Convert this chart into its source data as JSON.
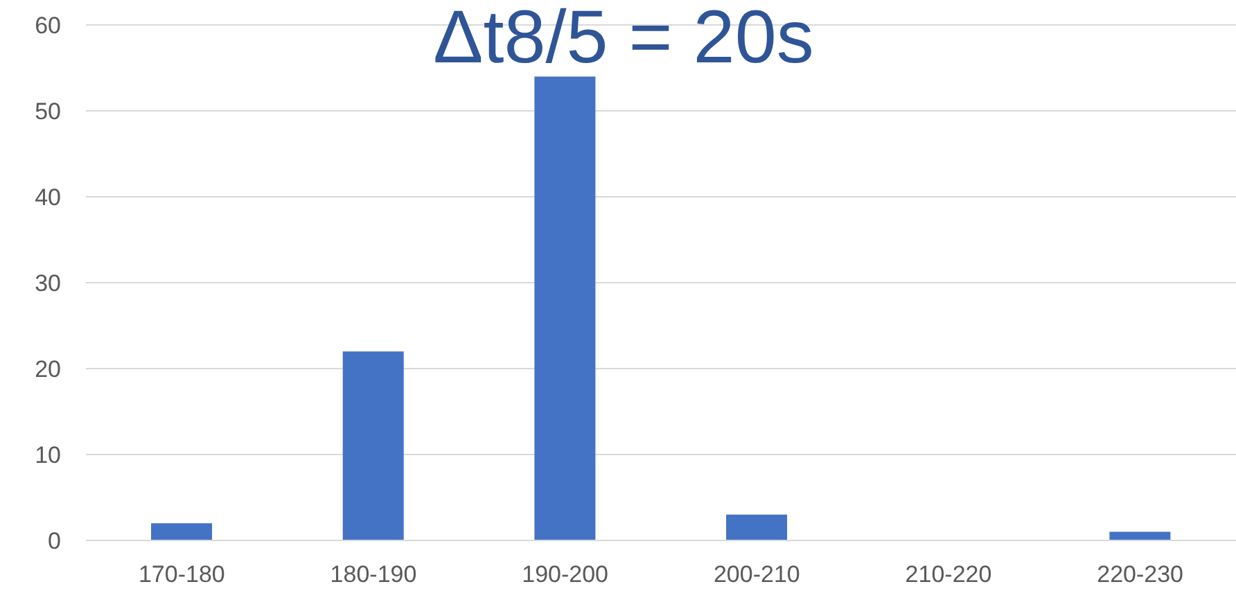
{
  "chart_data": {
    "type": "bar",
    "title": "Δt8/5 = 20s",
    "categories": [
      "170-180",
      "180-190",
      "190-200",
      "200-210",
      "210-220",
      "220-230"
    ],
    "values": [
      2,
      22,
      54,
      3,
      0,
      1
    ],
    "color": "#4472c4",
    "ylim": [
      0,
      60
    ],
    "yticks": [
      0,
      10,
      20,
      30,
      40,
      50,
      60
    ],
    "grid": "y"
  }
}
